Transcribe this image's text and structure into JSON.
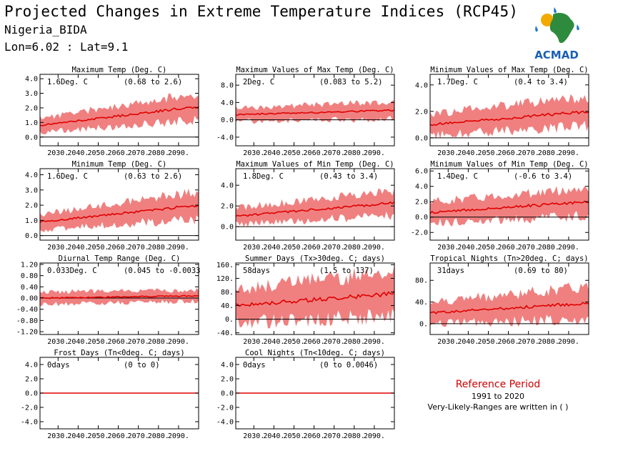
{
  "header": {
    "title": "Projected Changes in Extreme Temperature Indices (RCP45)",
    "station": "Nigeria_BIDA",
    "coords": "Lon=6.02 : Lat=9.1"
  },
  "logo": {
    "text": "ACMAD",
    "colors": {
      "africa": "#2e8b3e",
      "drops": "#1f78c8",
      "sun": "#f2a900",
      "text": "#1a5fb4"
    }
  },
  "legend": {
    "reference_label": "Reference Period",
    "reference_years": "1991 to 2020",
    "note": "Very-Likely-Ranges are written in ( )"
  },
  "colors": {
    "band": "#f08080",
    "line": "#e00000",
    "zero": "#000000"
  },
  "chart_data": [
    {
      "type": "area",
      "title": "Maximum Temp (Deg. C)",
      "mean_label": "1.6Deg. C",
      "range_label": "(0.68 to 2.6)",
      "x": [
        2021,
        2100
      ],
      "xticks": [
        "2030.",
        "2040.",
        "2050.",
        "2060.",
        "2070.",
        "2080.",
        "2090."
      ],
      "ylim": [
        -0.6,
        4.3
      ],
      "yticks": [
        0.0,
        1.0,
        2.0,
        3.0,
        4.0
      ],
      "ytick_labels": [
        "0.0",
        "1.0",
        "2.0",
        "3.0",
        "4.0"
      ],
      "series": {
        "mean_start": 0.8,
        "mean_end": 2.1,
        "halfwidth_start": 0.5,
        "halfwidth_end": 0.9
      }
    },
    {
      "type": "area",
      "title": "Maximum Values of Max Temp (Deg. C)",
      "mean_label": "2Deg. C",
      "range_label": "(0.083 to 5.2)",
      "x": [
        2021,
        2100
      ],
      "xticks": [
        "2030.",
        "2040.",
        "2050.",
        "2060.",
        "2070.",
        "2080.",
        "2090."
      ],
      "ylim": [
        -6.0,
        10.5
      ],
      "yticks": [
        -4.0,
        0.0,
        4.0,
        8.0
      ],
      "ytick_labels": [
        "-4.0",
        "0.0",
        "4.0",
        "8.0"
      ],
      "series": {
        "mean_start": 1.2,
        "mean_end": 2.2,
        "halfwidth_start": 1.6,
        "halfwidth_end": 2.0
      }
    },
    {
      "type": "area",
      "title": "Minimum Values of Max Temp (Deg. C)",
      "mean_label": "1.7Deg. C",
      "range_label": "(0.4 to 3.4)",
      "x": [
        2021,
        2100
      ],
      "xticks": [
        "2030.",
        "2040.",
        "2050.",
        "2060.",
        "2070.",
        "2080.",
        "2090."
      ],
      "ylim": [
        -0.6,
        4.8
      ],
      "yticks": [
        0.0,
        2.0,
        4.0
      ],
      "ytick_labels": [
        "0.0",
        "2.0",
        "4.0"
      ],
      "series": {
        "mean_start": 1.0,
        "mean_end": 2.0,
        "halfwidth_start": 0.8,
        "halfwidth_end": 1.1
      }
    },
    {
      "type": "area",
      "title": "Minimum Temp (Deg. C)",
      "mean_label": "1.6Deg. C",
      "range_label": "(0.63 to 2.6)",
      "x": [
        2021,
        2100
      ],
      "xticks": [
        "2030.",
        "2040.",
        "2050.",
        "2060.",
        "2070.",
        "2080.",
        "2090."
      ],
      "ylim": [
        -0.3,
        4.4
      ],
      "yticks": [
        0.0,
        1.0,
        2.0,
        3.0,
        4.0
      ],
      "ytick_labels": [
        "0.0",
        "1.0",
        "2.0",
        "3.0",
        "4.0"
      ],
      "series": {
        "mean_start": 0.9,
        "mean_end": 2.0,
        "halfwidth_start": 0.5,
        "halfwidth_end": 0.9
      }
    },
    {
      "type": "area",
      "title": "Maximum Values of Min Temp (Deg. C)",
      "mean_label": "1.8Deg. C",
      "range_label": "(0.43 to 3.4)",
      "x": [
        2021,
        2100
      ],
      "xticks": [
        "2030.",
        "2040.",
        "2050.",
        "2060.",
        "2070.",
        "2080.",
        "2090."
      ],
      "ylim": [
        -1.3,
        5.6
      ],
      "yticks": [
        0.0,
        2.0,
        4.0
      ],
      "ytick_labels": [
        "0.0",
        "2.0",
        "4.0"
      ],
      "series": {
        "mean_start": 1.0,
        "mean_end": 2.3,
        "halfwidth_start": 0.8,
        "halfwidth_end": 1.2
      }
    },
    {
      "type": "area",
      "title": "Minimum Values of Min Temp (Deg. C)",
      "mean_label": "1.4Deg. C",
      "range_label": "(-0.6 to 3.4)",
      "x": [
        2021,
        2100
      ],
      "xticks": [
        "2030.",
        "2040.",
        "2050.",
        "2060.",
        "2070.",
        "2080.",
        "2090."
      ],
      "ylim": [
        -3.0,
        6.3
      ],
      "yticks": [
        -2.0,
        0.0,
        2.0,
        4.0,
        6.0
      ],
      "ytick_labels": [
        "-2.0",
        "0.0",
        "2.0",
        "4.0",
        "6.0"
      ],
      "series": {
        "mean_start": 0.6,
        "mean_end": 2.0,
        "halfwidth_start": 1.4,
        "halfwidth_end": 1.8
      }
    },
    {
      "type": "area",
      "title": "Diurnal Temp Range (Deg. C)",
      "mean_label": "0.033Deg. C",
      "range_label": "(0.045 to -0.0033",
      "x": [
        2021,
        2100
      ],
      "xticks": [
        "2030.",
        "2040.",
        "2050.",
        "2060.",
        "2070.",
        "2080.",
        "2090."
      ],
      "ylim": [
        -1.3,
        1.25
      ],
      "yticks": [
        -1.2,
        -0.8,
        -0.4,
        0.0,
        0.4,
        0.8,
        1.2
      ],
      "ytick_labels": [
        "-1.20",
        "-0.80",
        "-0.40",
        "0.00",
        "0.40",
        "0.80",
        "1.20"
      ],
      "series": {
        "mean_start": 0.0,
        "mean_end": 0.08,
        "halfwidth_start": 0.22,
        "halfwidth_end": 0.2
      }
    },
    {
      "type": "area",
      "title": "Summer Days (Tx>30deg. C; days)",
      "mean_label": "58days",
      "range_label": "(1.5 to 137)",
      "x": [
        2021,
        2100
      ],
      "xticks": [
        "2030.",
        "2040.",
        "2050.",
        "2060.",
        "2070.",
        "2080.",
        "2090."
      ],
      "ylim": [
        -45,
        165
      ],
      "yticks": [
        -40,
        0,
        40,
        80,
        120,
        160
      ],
      "ytick_labels": [
        "-40.",
        "0.",
        "40.",
        "80.",
        "120.",
        "160."
      ],
      "series": {
        "mean_start": 40,
        "mean_end": 75,
        "halfwidth_start": 50,
        "halfwidth_end": 65
      }
    },
    {
      "type": "area",
      "title": "Tropical Nights (Tn>20deg. C; days)",
      "mean_label": "31days",
      "range_label": "(0.69 to 80)",
      "x": [
        2021,
        2100
      ],
      "xticks": [
        "2030.",
        "2040.",
        "2050.",
        "2060.",
        "2070.",
        "2080.",
        "2090."
      ],
      "ylim": [
        -20,
        112
      ],
      "yticks": [
        0,
        40,
        80
      ],
      "ytick_labels": [
        "0.",
        "40.",
        "80."
      ],
      "series": {
        "mean_start": 20,
        "mean_end": 38,
        "halfwidth_start": 20,
        "halfwidth_end": 30
      }
    },
    {
      "type": "area",
      "title": "Frost Days (Tn<0deg. C; days)",
      "mean_label": "0days",
      "range_label": "(0 to 0)",
      "x": [
        2021,
        2100
      ],
      "xticks": [
        "2030.",
        "2040.",
        "2050.",
        "2060.",
        "2070.",
        "2080.",
        "2090."
      ],
      "ylim": [
        -5,
        5
      ],
      "yticks": [
        -4.0,
        -2.0,
        0.0,
        2.0,
        4.0
      ],
      "ytick_labels": [
        "-4.0",
        "-2.0",
        "0.0",
        "2.0",
        "4.0"
      ],
      "series": {
        "mean_start": 0,
        "mean_end": 0,
        "halfwidth_start": 0,
        "halfwidth_end": 0
      }
    },
    {
      "type": "area",
      "title": "Cool Nights (Tn<10deg. C; days)",
      "mean_label": "0days",
      "range_label": "(0 to 0.0046)",
      "x": [
        2021,
        2100
      ],
      "xticks": [
        "2030.",
        "2040.",
        "2050.",
        "2060.",
        "2070.",
        "2080.",
        "2090."
      ],
      "ylim": [
        -5,
        5
      ],
      "yticks": [
        -4.0,
        -2.0,
        0.0,
        2.0,
        4.0
      ],
      "ytick_labels": [
        "-4.0",
        "-2.0",
        "0.0",
        "2.0",
        "4.0"
      ],
      "series": {
        "mean_start": 0,
        "mean_end": 0,
        "halfwidth_start": 0,
        "halfwidth_end": 0
      }
    }
  ]
}
